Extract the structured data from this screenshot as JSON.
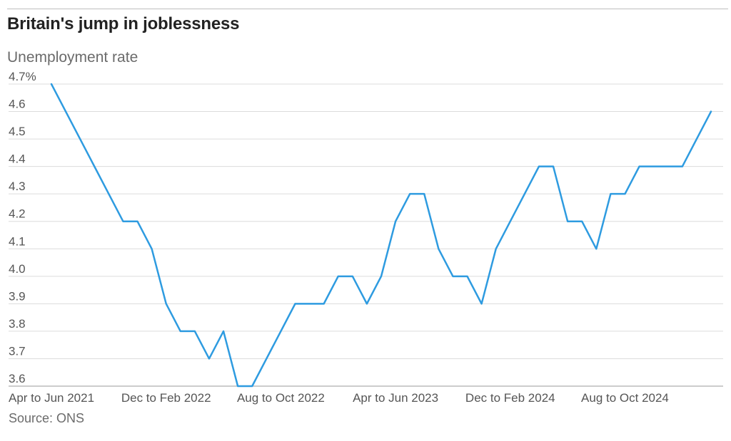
{
  "chart_data": {
    "type": "line",
    "title": "Britain's jump in joblessness",
    "subtitle": "Unemployment rate",
    "source": "Source: ONS",
    "y_tick_labels": [
      "4.7%",
      "4.6",
      "4.5",
      "4.4",
      "4.3",
      "4.2",
      "4.1",
      "4.0",
      "3.9",
      "3.8",
      "3.7",
      "3.6"
    ],
    "y_tick_values": [
      4.7,
      4.6,
      4.5,
      4.4,
      4.3,
      4.2,
      4.1,
      4.0,
      3.9,
      3.8,
      3.7,
      3.6
    ],
    "ylim": [
      3.6,
      4.7
    ],
    "grid": true,
    "x_tick_labels": [
      "Apr to Jun 2021",
      "Dec to Feb 2022",
      "Aug to Oct 2022",
      "Apr to Jun 2023",
      "Dec to Feb 2024",
      "Aug to Oct 2024"
    ],
    "x_tick_indices": [
      0,
      8,
      16,
      24,
      32,
      40
    ],
    "series": [
      {
        "color": "#2e9be0",
        "values": [
          4.7,
          4.6,
          4.5,
          4.4,
          4.3,
          4.2,
          4.2,
          4.1,
          3.9,
          3.8,
          3.8,
          3.7,
          3.8,
          3.6,
          3.6,
          3.7,
          3.8,
          3.9,
          3.9,
          3.9,
          4.0,
          4.0,
          3.9,
          4.0,
          4.2,
          4.3,
          4.3,
          4.1,
          4.0,
          4.0,
          3.9,
          4.1,
          4.2,
          4.3,
          4.4,
          4.4,
          4.2,
          4.2,
          4.1,
          4.3,
          4.3,
          4.4,
          4.4,
          4.4,
          4.4,
          4.5,
          4.6
        ]
      }
    ]
  }
}
